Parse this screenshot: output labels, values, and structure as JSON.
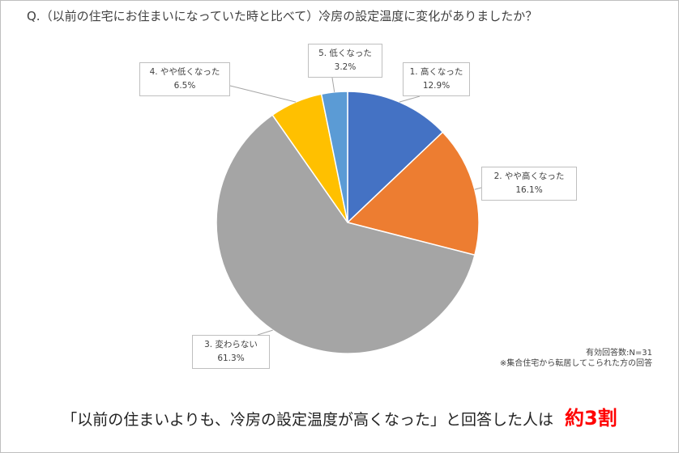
{
  "title": "Q.（以前の住宅にお住まいになっていた時と比べて）冷房の設定温度に変化がありましたか？",
  "chart_data": {
    "type": "pie",
    "title": "Q.（以前の住宅にお住まいになっていた時と比べて）冷房の設定温度に変化がありましたか？",
    "slices": [
      {
        "label": "1. 高くなった",
        "value": 12.9,
        "display": "12.9%",
        "color": "#4472c4"
      },
      {
        "label": "2. やや高くなった",
        "value": 16.1,
        "display": "16.1%",
        "color": "#ed7d31"
      },
      {
        "label": "3. 変わらない",
        "value": 61.3,
        "display": "61.3%",
        "color": "#a5a5a5"
      },
      {
        "label": "4. やや低くなった",
        "value": 6.5,
        "display": "6.5%",
        "color": "#ffc000"
      },
      {
        "label": "5. 低くなった",
        "value": 3.2,
        "display": "3.2%",
        "color": "#5b9bd5"
      }
    ],
    "start_angle": "12 o'clock",
    "direction": "clockwise"
  },
  "notes": {
    "n": "有効回答数:N=31",
    "source": "※集合住宅から転居してこられた方の回答"
  },
  "conclusion": {
    "text": "「以前の住まいよりも、冷房の設定温度が高くなった」と回答した人は",
    "highlight": "約3割",
    "highlight_color": "#ff0000"
  }
}
